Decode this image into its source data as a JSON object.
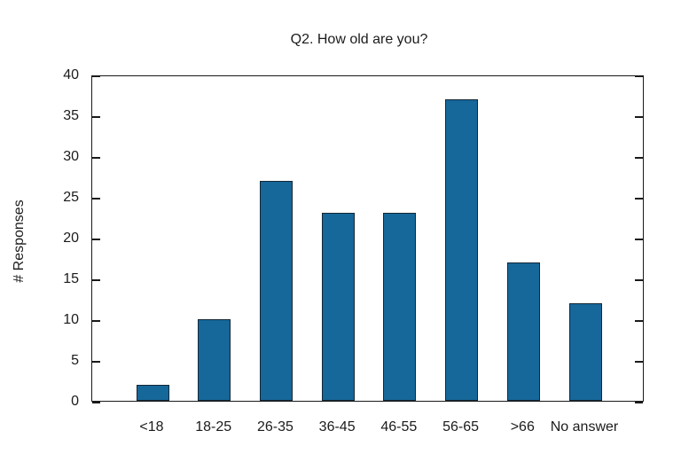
{
  "chart_data": {
    "type": "bar",
    "title": "Q2. How old are you?",
    "xlabel": "",
    "ylabel": "# Responses",
    "categories": [
      "<18",
      "18-25",
      "26-35",
      "36-45",
      "46-55",
      "56-65",
      ">66",
      "No answer"
    ],
    "values": [
      2,
      10,
      27,
      23,
      23,
      37,
      17,
      12
    ],
    "ylim": [
      0,
      40
    ],
    "yticks": [
      0,
      5,
      10,
      15,
      20,
      25,
      30,
      35,
      40
    ],
    "grid": false,
    "legend": false,
    "colors": {
      "bar_fill": "#16679A",
      "bar_border": "#132735",
      "axis": "#1a1a1a",
      "text": "#1b1b1b",
      "background": "#ffffff"
    }
  }
}
